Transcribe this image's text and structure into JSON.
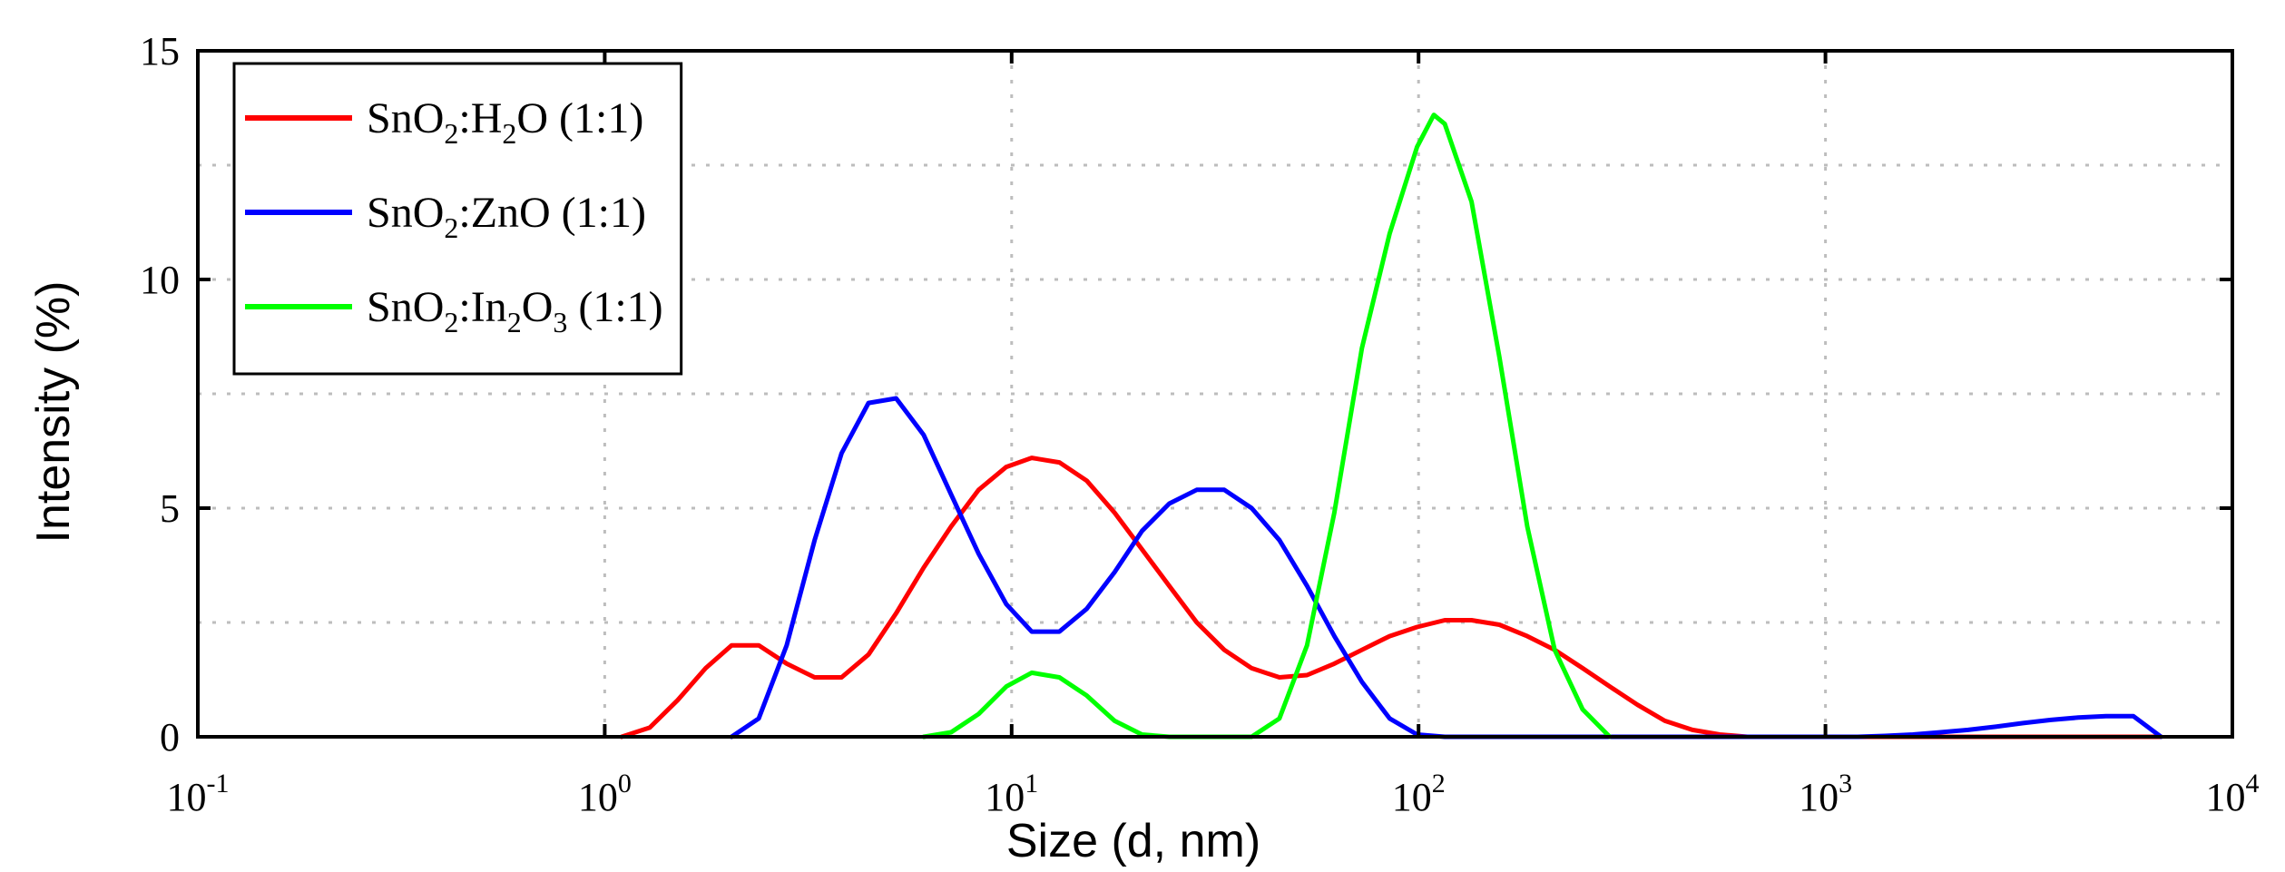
{
  "chart_data": {
    "type": "line",
    "title": "",
    "xlabel": "Size (d, nm)",
    "ylabel": "Intensity (%)",
    "xscale": "log",
    "xlim": [
      0.1,
      10000
    ],
    "ylim": [
      0,
      15
    ],
    "grid": true,
    "legend_position": "top-left",
    "x_ticks": [
      {
        "base": "10",
        "exp": "-1"
      },
      {
        "base": "10",
        "exp": "0"
      },
      {
        "base": "10",
        "exp": "1"
      },
      {
        "base": "10",
        "exp": "2"
      },
      {
        "base": "10",
        "exp": "3"
      },
      {
        "base": "10",
        "exp": "4"
      }
    ],
    "y_ticks": [
      "0",
      "5",
      "10",
      "15"
    ],
    "series": [
      {
        "name": "SnO2:H2O (1:1)",
        "legend_parts": [
          [
            "SnO",
            false
          ],
          [
            "2",
            true
          ],
          [
            ":H",
            false
          ],
          [
            "2",
            true
          ],
          [
            "O (1:1)",
            false
          ]
        ],
        "color": "#ff0000",
        "x": [
          1.1,
          1.29,
          1.51,
          1.77,
          2.05,
          2.39,
          2.8,
          3.28,
          3.82,
          4.45,
          5.2,
          6.08,
          7.1,
          8.3,
          9.7,
          11.2,
          13.1,
          15.3,
          17.9,
          20.9,
          24.4,
          28.5,
          33.3,
          38.9,
          45.5,
          53.2,
          62.1,
          72.6,
          84.9,
          99.2,
          116,
          135,
          158,
          185,
          216,
          253,
          295,
          345,
          403,
          471,
          550,
          643,
          751,
          878,
          1030,
          1200,
          1400,
          1640,
          1920,
          2240,
          2620,
          3060,
          3580,
          4180,
          4890,
          5710,
          6680
        ],
        "y": [
          0,
          0.2,
          0.8,
          1.5,
          2.0,
          2.0,
          1.6,
          1.3,
          1.3,
          1.8,
          2.7,
          3.7,
          4.6,
          5.4,
          5.9,
          6.1,
          6.0,
          5.6,
          4.9,
          4.1,
          3.3,
          2.5,
          1.9,
          1.5,
          1.3,
          1.35,
          1.6,
          1.9,
          2.2,
          2.4,
          2.55,
          2.55,
          2.45,
          2.2,
          1.9,
          1.5,
          1.1,
          0.7,
          0.35,
          0.15,
          0.05,
          0,
          0,
          0,
          0,
          0,
          0,
          0,
          0,
          0,
          0,
          0,
          0,
          0,
          0,
          0,
          0
        ]
      },
      {
        "name": "SnO2:ZnO (1:1)",
        "legend_parts": [
          [
            "SnO",
            false
          ],
          [
            "2",
            true
          ],
          [
            ":ZnO (1:1)",
            false
          ]
        ],
        "color": "#0000ff",
        "x": [
          2.05,
          2.39,
          2.8,
          3.28,
          3.82,
          4.45,
          5.2,
          6.08,
          7.1,
          8.3,
          9.7,
          11.2,
          13.1,
          15.3,
          17.9,
          20.9,
          24.4,
          28.5,
          33.3,
          38.9,
          45.5,
          53.2,
          62.1,
          72.6,
          84.9,
          99.2,
          116,
          135,
          158,
          185,
          216,
          253,
          295,
          345,
          403,
          471,
          550,
          643,
          751,
          878,
          1030,
          1200,
          1400,
          1640,
          1920,
          2240,
          2620,
          3060,
          3580,
          4180,
          4890,
          5710,
          6680
        ],
        "y": [
          0,
          0.4,
          2.0,
          4.3,
          6.2,
          7.3,
          7.4,
          6.6,
          5.3,
          4.0,
          2.9,
          2.3,
          2.3,
          2.8,
          3.6,
          4.5,
          5.1,
          5.4,
          5.4,
          5.0,
          4.3,
          3.3,
          2.2,
          1.2,
          0.4,
          0.05,
          0,
          0,
          0,
          0,
          0,
          0,
          0,
          0,
          0,
          0,
          0,
          0,
          0,
          0,
          0,
          0,
          0.02,
          0.05,
          0.1,
          0.15,
          0.22,
          0.3,
          0.37,
          0.42,
          0.45,
          0.45,
          0
        ]
      },
      {
        "name": "SnO2:In2O3 (1:1)",
        "legend_parts": [
          [
            "SnO",
            false
          ],
          [
            "2",
            true
          ],
          [
            ":In",
            false
          ],
          [
            "2",
            true
          ],
          [
            "O",
            false
          ],
          [
            "3",
            true
          ],
          [
            " (1:1)",
            false
          ]
        ],
        "color": "#00ff00",
        "x": [
          6.08,
          7.1,
          8.3,
          9.7,
          11.2,
          13.1,
          15.3,
          17.9,
          20.9,
          24.4,
          28.5,
          33.3,
          38.9,
          45.5,
          53.2,
          62.1,
          72.6,
          84.9,
          99.2,
          109,
          116,
          135,
          158,
          185,
          216,
          253,
          295
        ],
        "y": [
          0,
          0.1,
          0.5,
          1.1,
          1.4,
          1.3,
          0.9,
          0.35,
          0.05,
          0,
          0,
          0,
          0,
          0.4,
          2.0,
          4.9,
          8.5,
          11.0,
          12.9,
          13.6,
          13.4,
          11.7,
          8.3,
          4.6,
          1.9,
          0.6,
          0
        ]
      }
    ]
  }
}
